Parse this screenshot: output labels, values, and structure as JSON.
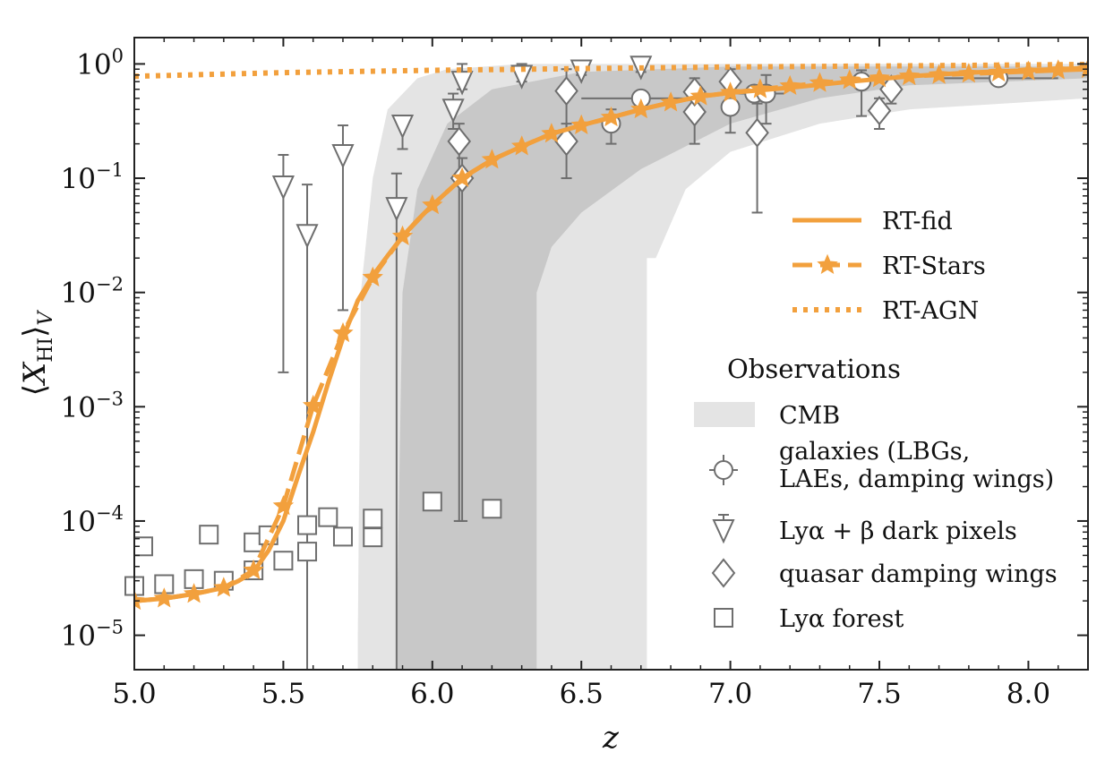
{
  "chart_data": {
    "type": "line",
    "xlabel": "z",
    "ylabel": "⟨X_HI⟩_V",
    "ylabel_parts": {
      "open": "⟨",
      "var": "X",
      "sub": "HI",
      "close": "⟩",
      "vsub": "V"
    },
    "xlim": [
      5.0,
      8.2
    ],
    "ylim": [
      5e-06,
      1.7
    ],
    "yscale": "log",
    "legend_position": "right",
    "xticks": [
      5.0,
      5.5,
      6.0,
      6.5,
      7.0,
      7.5,
      8.0
    ],
    "xtick_labels": [
      "5.0",
      "5.5",
      "6.0",
      "6.5",
      "7.0",
      "7.5",
      "8.0"
    ],
    "yticks": [
      {
        "value": 1,
        "base": "10",
        "exp": "0"
      },
      {
        "value": 0.1,
        "base": "10",
        "exp": "−1"
      },
      {
        "value": 0.01,
        "base": "10",
        "exp": "−2"
      },
      {
        "value": 0.001,
        "base": "10",
        "exp": "−3"
      },
      {
        "value": 0.0001,
        "base": "10",
        "exp": "−4"
      },
      {
        "value": 1e-05,
        "base": "10",
        "exp": "−5"
      }
    ],
    "colors": {
      "model": "#f2a03d",
      "marker": "#6e6e6e",
      "band_light": "#e4e4e4",
      "band_dark": "#c8c8c8"
    },
    "cmb_bands": [
      {
        "name": "CMB outer",
        "color": "#e4e4e4",
        "upper": [
          [
            5.75,
            5e-06
          ],
          [
            5.75,
            1e-05
          ],
          [
            5.76,
            0.01
          ],
          [
            5.8,
            0.1
          ],
          [
            5.85,
            0.4
          ],
          [
            5.95,
            0.75
          ],
          [
            6.05,
            0.9
          ],
          [
            6.3,
            1.0
          ],
          [
            8.2,
            1.0
          ]
        ],
        "lower": [
          [
            6.72,
            5e-06
          ],
          [
            6.72,
            0.02
          ],
          [
            6.75,
            0.02
          ],
          [
            6.85,
            0.08
          ],
          [
            7.0,
            0.17
          ],
          [
            7.3,
            0.3
          ],
          [
            7.6,
            0.4
          ],
          [
            8.2,
            0.5
          ]
        ]
      },
      {
        "name": "CMB inner",
        "color": "#c8c8c8",
        "upper": [
          [
            5.88,
            5e-06
          ],
          [
            5.88,
            1e-05
          ],
          [
            5.9,
            0.01
          ],
          [
            5.95,
            0.08
          ],
          [
            6.05,
            0.3
          ],
          [
            6.2,
            0.6
          ],
          [
            6.5,
            0.85
          ],
          [
            7.0,
            0.95
          ],
          [
            8.2,
            0.95
          ]
        ],
        "lower": [
          [
            6.35,
            5e-06
          ],
          [
            6.35,
            0.01
          ],
          [
            6.4,
            0.025
          ],
          [
            6.5,
            0.05
          ],
          [
            6.7,
            0.12
          ],
          [
            7.0,
            0.3
          ],
          [
            7.3,
            0.5
          ],
          [
            7.6,
            0.65
          ],
          [
            8.2,
            0.75
          ]
        ]
      }
    ],
    "series": [
      {
        "name": "RT-fid",
        "style": "solid",
        "x": [
          5.0,
          5.1,
          5.2,
          5.3,
          5.35,
          5.4,
          5.45,
          5.5,
          5.55,
          5.6,
          5.65,
          5.7,
          5.75,
          5.8,
          5.85,
          5.9,
          5.95,
          6.0,
          6.1,
          6.2,
          6.3,
          6.4,
          6.5,
          6.6,
          6.7,
          6.8,
          6.9,
          7.0,
          7.2,
          7.4,
          7.6,
          7.8,
          8.0,
          8.2
        ],
        "y": [
          2e-05,
          2.1e-05,
          2.3e-05,
          2.6e-05,
          3e-05,
          3.6e-05,
          5.5e-05,
          0.0001,
          0.00025,
          0.0006,
          0.0016,
          0.004,
          0.0085,
          0.014,
          0.021,
          0.031,
          0.043,
          0.058,
          0.1,
          0.145,
          0.19,
          0.245,
          0.29,
          0.34,
          0.4,
          0.46,
          0.52,
          0.56,
          0.62,
          0.7,
          0.78,
          0.84,
          0.88,
          0.92
        ]
      },
      {
        "name": "RT-Stars",
        "style": "dashed-stars",
        "x": [
          5.0,
          5.1,
          5.2,
          5.3,
          5.4,
          5.5,
          5.6,
          5.7,
          5.8,
          5.9,
          6.0,
          6.1,
          6.2,
          6.3,
          6.4,
          6.5,
          6.6,
          6.7,
          6.8,
          6.9,
          7.0,
          7.1,
          7.2,
          7.3,
          7.4,
          7.5,
          7.6,
          7.7,
          7.8,
          7.9,
          8.0,
          8.1,
          8.2
        ],
        "y": [
          2e-05,
          2.1e-05,
          2.3e-05,
          2.6e-05,
          3.7e-05,
          0.000135,
          0.00102,
          0.0044,
          0.0135,
          0.031,
          0.058,
          0.1,
          0.145,
          0.19,
          0.245,
          0.29,
          0.34,
          0.4,
          0.46,
          0.52,
          0.56,
          0.6,
          0.64,
          0.68,
          0.72,
          0.75,
          0.78,
          0.8,
          0.82,
          0.84,
          0.86,
          0.88,
          0.9
        ]
      },
      {
        "name": "RT-AGN",
        "style": "dotted",
        "x": [
          5.0,
          5.5,
          6.0,
          6.5,
          7.0,
          7.5,
          8.0,
          8.2
        ],
        "y": [
          0.78,
          0.84,
          0.88,
          0.91,
          0.94,
          0.96,
          0.98,
          0.99
        ]
      }
    ],
    "observations": {
      "galaxies": [
        {
          "x": 6.6,
          "y": 0.3,
          "ylo": 0.2,
          "yhi": 0.4
        },
        {
          "x": 6.7,
          "y": 0.5,
          "xerr": 0.2
        },
        {
          "x": 7.0,
          "y": 0.42,
          "ylo": 0.25,
          "yhi": 0.6
        },
        {
          "x": 7.08,
          "y": 0.55,
          "xerr": 0.1
        },
        {
          "x": 7.12,
          "y": 0.55,
          "ylo": 0.3,
          "yhi": 0.8
        },
        {
          "x": 7.44,
          "y": 0.7,
          "ylo": 0.35,
          "yhi": 0.88
        },
        {
          "x": 7.9,
          "y": 0.75,
          "xerr": 0.2
        }
      ],
      "dark_pixels": [
        {
          "x": 5.5,
          "y": 0.085,
          "ylo": 0.002,
          "yhi": 0.16
        },
        {
          "x": 5.58,
          "y": 0.032,
          "ylo": 5e-06,
          "yhi": 0.088
        },
        {
          "x": 5.7,
          "y": 0.16,
          "ylo": 0.007,
          "yhi": 0.29
        },
        {
          "x": 5.88,
          "y": 0.055,
          "ylo": 5e-06,
          "yhi": 0.11
        },
        {
          "x": 5.9,
          "y": 0.29,
          "ylo": 0.18,
          "yhi": 0.34
        },
        {
          "x": 6.07,
          "y": 0.4,
          "ylo": 0.27,
          "yhi": 0.55
        },
        {
          "x": 6.1,
          "y": 0.7,
          "ylo": 0.6,
          "yhi": 1.0
        },
        {
          "x": 6.3,
          "y": 0.79,
          "ylo": 0.7,
          "yhi": 1.0
        },
        {
          "x": 6.5,
          "y": 0.88,
          "ylo": 0.8,
          "yhi": 1.0
        },
        {
          "x": 6.7,
          "y": 0.95,
          "ylo": 0.85,
          "yhi": 1.0
        }
      ],
      "quasar_damping": [
        {
          "x": 6.09,
          "y": 0.21,
          "ylo": 0.0001,
          "yhi": 0.3
        },
        {
          "x": 6.1,
          "y": 0.1,
          "ylo": 0.0001,
          "yhi": 0.15
        },
        {
          "x": 6.45,
          "y": 0.58,
          "ylo": 0.2,
          "yhi": 0.9
        },
        {
          "x": 6.45,
          "y": 0.21,
          "ylo": 0.1,
          "yhi": 0.3
        },
        {
          "x": 6.88,
          "y": 0.38,
          "ylo": 0.2,
          "yhi": 0.5
        },
        {
          "x": 6.88,
          "y": 0.57,
          "ylo": 0.4,
          "yhi": 0.75
        },
        {
          "x": 7.0,
          "y": 0.7,
          "ylo": 0.5,
          "yhi": 0.9
        },
        {
          "x": 7.09,
          "y": 0.25,
          "ylo": 0.05,
          "yhi": 0.45
        },
        {
          "x": 7.5,
          "y": 0.39,
          "ylo": 0.27,
          "yhi": 0.5
        },
        {
          "x": 7.54,
          "y": 0.6,
          "ylo": 0.45,
          "yhi": 0.75
        }
      ],
      "lya_forest": [
        {
          "x": 5.0,
          "y": 2.7e-05
        },
        {
          "x": 5.03,
          "y": 6e-05
        },
        {
          "x": 5.1,
          "y": 2.8e-05
        },
        {
          "x": 5.2,
          "y": 3.1e-05
        },
        {
          "x": 5.25,
          "y": 7.6e-05
        },
        {
          "x": 5.3,
          "y": 3e-05
        },
        {
          "x": 5.4,
          "y": 3.7e-05
        },
        {
          "x": 5.4,
          "y": 6.5e-05
        },
        {
          "x": 5.45,
          "y": 7.5e-05
        },
        {
          "x": 5.5,
          "y": 4.5e-05
        },
        {
          "x": 5.58,
          "y": 5.4e-05
        },
        {
          "x": 5.58,
          "y": 9.2e-05
        },
        {
          "x": 5.65,
          "y": 0.000108
        },
        {
          "x": 5.7,
          "y": 7.3e-05
        },
        {
          "x": 5.8,
          "y": 7.2e-05
        },
        {
          "x": 5.8,
          "y": 0.000105
        },
        {
          "x": 6.0,
          "y": 0.000148
        },
        {
          "x": 6.2,
          "y": 0.000128
        }
      ]
    },
    "legend": {
      "models": [
        {
          "label": "RT-fid",
          "style": "solid"
        },
        {
          "label": "RT-Stars",
          "style": "dashed-stars"
        },
        {
          "label": "RT-AGN",
          "style": "dotted"
        }
      ],
      "observations_title": "Observations",
      "observations": [
        {
          "marker": "band",
          "lines": [
            "CMB"
          ]
        },
        {
          "marker": "circle",
          "lines": [
            "galaxies (LBGs,",
            "LAEs, damping wings)"
          ]
        },
        {
          "marker": "triangle",
          "lines": [
            "Lyα + β dark pixels"
          ]
        },
        {
          "marker": "diamond",
          "lines": [
            "quasar damping wings"
          ]
        },
        {
          "marker": "square",
          "lines": [
            "Lyα forest"
          ]
        }
      ]
    }
  }
}
